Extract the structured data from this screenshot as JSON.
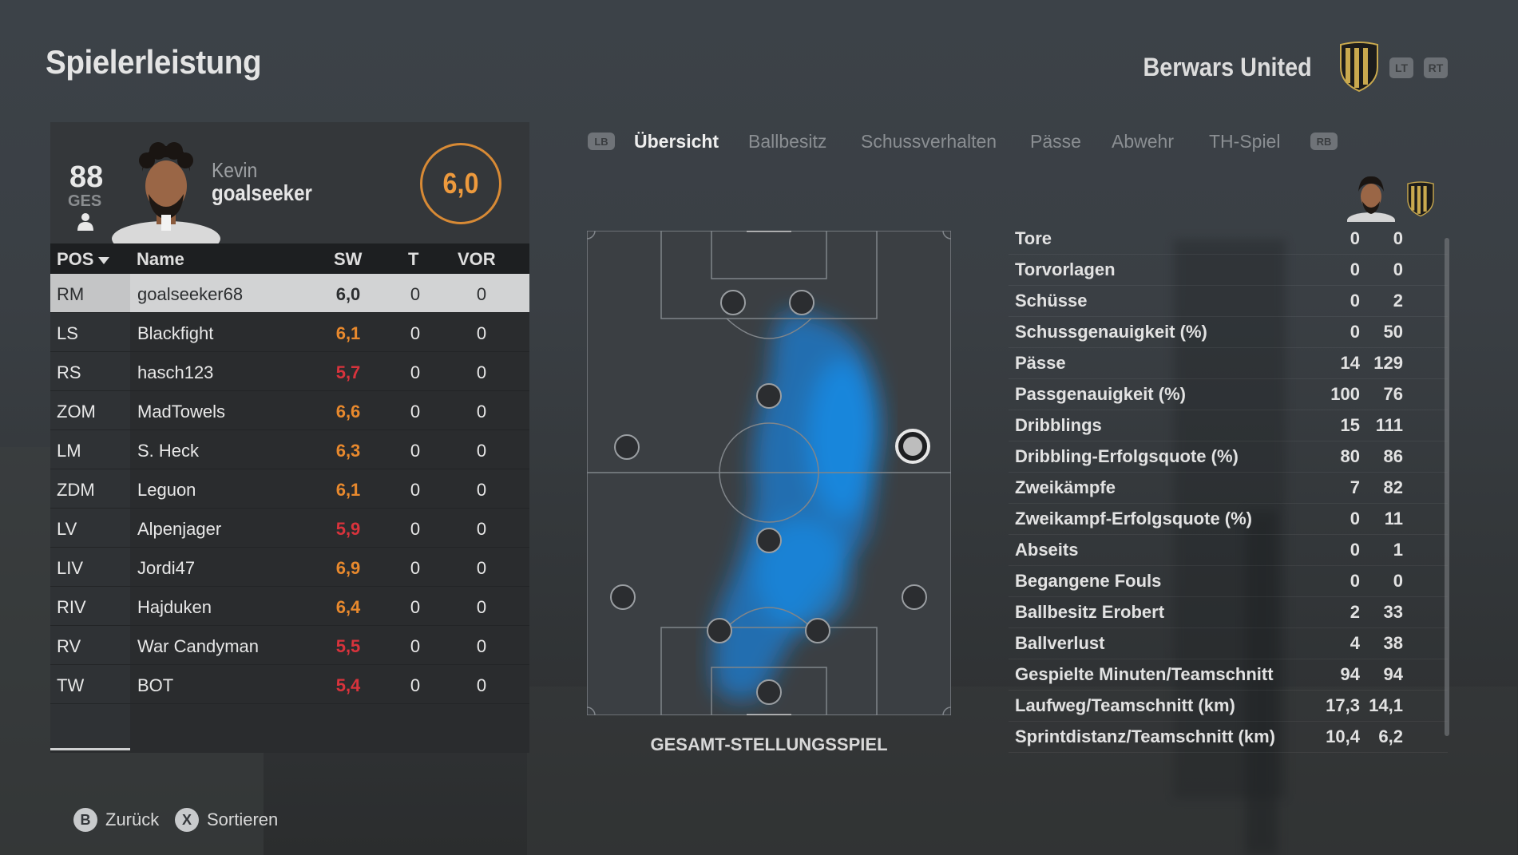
{
  "page_title": "Spielerleistung",
  "team": {
    "name": "Berwars United",
    "crest_icon": "shield-crest-icon"
  },
  "trigger_buttons": {
    "left": "LT",
    "right": "RT"
  },
  "player": {
    "overall": "88",
    "overall_label": "GES",
    "first_name": "Kevin",
    "last_name": "goalseeker",
    "match_rating": "6,0"
  },
  "table": {
    "headers": {
      "pos": "POS",
      "name": "Name",
      "sw": "SW",
      "t": "T",
      "vor": "VOR"
    },
    "rows": [
      {
        "pos": "RM",
        "name": "goalseeker68",
        "sw": "6,0",
        "t": "0",
        "vor": "0",
        "tone": "dark",
        "selected": true
      },
      {
        "pos": "LS",
        "name": "Blackfight",
        "sw": "6,1",
        "t": "0",
        "vor": "0",
        "tone": "orange"
      },
      {
        "pos": "RS",
        "name": "hasch123",
        "sw": "5,7",
        "t": "0",
        "vor": "0",
        "tone": "red"
      },
      {
        "pos": "ZOM",
        "name": "MadTowels",
        "sw": "6,6",
        "t": "0",
        "vor": "0",
        "tone": "orange"
      },
      {
        "pos": "LM",
        "name": "S. Heck",
        "sw": "6,3",
        "t": "0",
        "vor": "0",
        "tone": "orange"
      },
      {
        "pos": "ZDM",
        "name": "Leguon",
        "sw": "6,1",
        "t": "0",
        "vor": "0",
        "tone": "orange"
      },
      {
        "pos": "LV",
        "name": "Alpenjager",
        "sw": "5,9",
        "t": "0",
        "vor": "0",
        "tone": "red"
      },
      {
        "pos": "LIV",
        "name": "Jordi47",
        "sw": "6,9",
        "t": "0",
        "vor": "0",
        "tone": "orange"
      },
      {
        "pos": "RIV",
        "name": "Hajduken",
        "sw": "6,4",
        "t": "0",
        "vor": "0",
        "tone": "orange"
      },
      {
        "pos": "RV",
        "name": "War Candyman",
        "sw": "5,5",
        "t": "0",
        "vor": "0",
        "tone": "red"
      },
      {
        "pos": "TW",
        "name": "BOT",
        "sw": "5,4",
        "t": "0",
        "vor": "0",
        "tone": "red"
      }
    ]
  },
  "tabs": {
    "lb": "LB",
    "rb": "RB",
    "items": [
      "Übersicht",
      "Ballbesitz",
      "Schussverhalten",
      "Pässe",
      "Abwehr",
      "TH-Spiel"
    ],
    "active": 0
  },
  "pitch_caption": "GESAMT-STELLUNGSSPIEL",
  "stats": [
    {
      "label": "Tore",
      "player": "0",
      "team": "0"
    },
    {
      "label": "Torvorlagen",
      "player": "0",
      "team": "0"
    },
    {
      "label": "Schüsse",
      "player": "0",
      "team": "2"
    },
    {
      "label": "Schussgenauigkeit (%)",
      "player": "0",
      "team": "50"
    },
    {
      "label": "Pässe",
      "player": "14",
      "team": "129"
    },
    {
      "label": "Passgenauigkeit (%)",
      "player": "100",
      "team": "76"
    },
    {
      "label": "Dribblings",
      "player": "15",
      "team": "111"
    },
    {
      "label": "Dribbling-Erfolgsquote (%)",
      "player": "80",
      "team": "86"
    },
    {
      "label": "Zweikämpfe",
      "player": "7",
      "team": "82"
    },
    {
      "label": "Zweikampf-Erfolgsquote (%)",
      "player": "0",
      "team": "11"
    },
    {
      "label": "Abseits",
      "player": "0",
      "team": "1"
    },
    {
      "label": "Begangene Fouls",
      "player": "0",
      "team": "0"
    },
    {
      "label": "Ballbesitz Erobert",
      "player": "2",
      "team": "33"
    },
    {
      "label": "Ballverlust",
      "player": "4",
      "team": "38"
    },
    {
      "label": "Gespielte Minuten/Teamschnitt",
      "player": "94",
      "team": "94"
    },
    {
      "label": "Laufweg/Teamschnitt (km)",
      "player": "17,3",
      "team": "14,1"
    },
    {
      "label": "Sprintdistanz/Teamschnitt (km)",
      "player": "10,4",
      "team": "6,2"
    }
  ],
  "footer": {
    "back": {
      "key": "B",
      "label": "Zurück"
    },
    "sort": {
      "key": "X",
      "label": "Sortieren"
    }
  },
  "colors": {
    "rating_orange": "#e8892d",
    "rating_red": "#d8333c",
    "heatmap_blue": "#1a7fd4"
  }
}
